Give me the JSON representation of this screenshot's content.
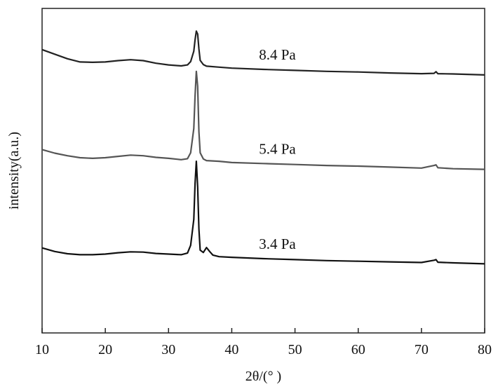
{
  "chart_data": {
    "type": "line",
    "xlabel": "2θ/(°  )",
    "ylabel": "intensity(a.u.)",
    "xlim": [
      10,
      80
    ],
    "xticks": [
      10,
      20,
      30,
      40,
      50,
      60,
      70,
      80
    ],
    "ylim": [
      0,
      100
    ],
    "grid": false,
    "legend": "none",
    "y_scale_note": "arbitrary units, curves vertically offset",
    "series": [
      {
        "name": "8.4 Pa",
        "color": "#222222",
        "x": [
          10,
          12,
          14,
          16,
          18,
          20,
          22,
          24,
          26,
          28,
          30,
          32,
          33,
          33.5,
          34,
          34.2,
          34.4,
          34.6,
          34.8,
          35,
          35.5,
          36,
          38,
          40,
          45,
          50,
          55,
          60,
          65,
          70,
          72,
          72.3,
          72.6,
          75,
          80
        ],
        "y": [
          87.3,
          85.9,
          84.5,
          83.5,
          83.4,
          83.5,
          83.9,
          84.2,
          83.9,
          83.1,
          82.6,
          82.3,
          82.6,
          83.6,
          86.8,
          90.3,
          93.0,
          92.1,
          87.5,
          84.0,
          82.7,
          82.2,
          81.9,
          81.6,
          81.2,
          80.9,
          80.6,
          80.4,
          80.1,
          79.9,
          80.0,
          80.5,
          79.9,
          79.8,
          79.5
        ]
      },
      {
        "name": "5.4 Pa",
        "color": "#555555",
        "x": [
          10,
          12,
          14,
          16,
          18,
          20,
          22,
          24,
          26,
          28,
          30,
          32,
          33,
          33.5,
          34,
          34.2,
          34.4,
          34.6,
          34.8,
          35,
          35.5,
          36,
          38,
          40,
          45,
          50,
          55,
          60,
          65,
          70,
          72,
          72.3,
          72.6,
          75,
          80
        ],
        "y": [
          56.5,
          55.4,
          54.6,
          54.0,
          53.8,
          54.0,
          54.4,
          54.8,
          54.6,
          54.1,
          53.8,
          53.4,
          53.7,
          55.5,
          63.0,
          73.0,
          80.6,
          76.0,
          62.0,
          55.5,
          53.6,
          53.1,
          52.9,
          52.5,
          52.2,
          51.9,
          51.6,
          51.4,
          51.1,
          50.8,
          51.6,
          51.8,
          50.9,
          50.6,
          50.4
        ]
      },
      {
        "name": "3.4 Pa",
        "color": "#111111",
        "x": [
          10,
          12,
          14,
          16,
          18,
          20,
          22,
          24,
          26,
          28,
          30,
          32,
          33,
          33.5,
          34,
          34.2,
          34.4,
          34.6,
          34.8,
          35,
          35.5,
          36,
          36.5,
          37,
          38,
          40,
          45,
          50,
          55,
          60,
          65,
          70,
          72,
          72.3,
          72.6,
          75,
          80
        ],
        "y": [
          26.2,
          25.1,
          24.4,
          24.1,
          24.1,
          24.3,
          24.7,
          25.0,
          24.9,
          24.5,
          24.3,
          24.1,
          24.6,
          27.0,
          35.0,
          46.0,
          52.9,
          45.0,
          32.0,
          25.5,
          24.8,
          26.3,
          25.1,
          24.0,
          23.5,
          23.3,
          22.9,
          22.6,
          22.3,
          22.1,
          21.9,
          21.7,
          22.4,
          22.6,
          21.8,
          21.6,
          21.3
        ]
      }
    ]
  }
}
